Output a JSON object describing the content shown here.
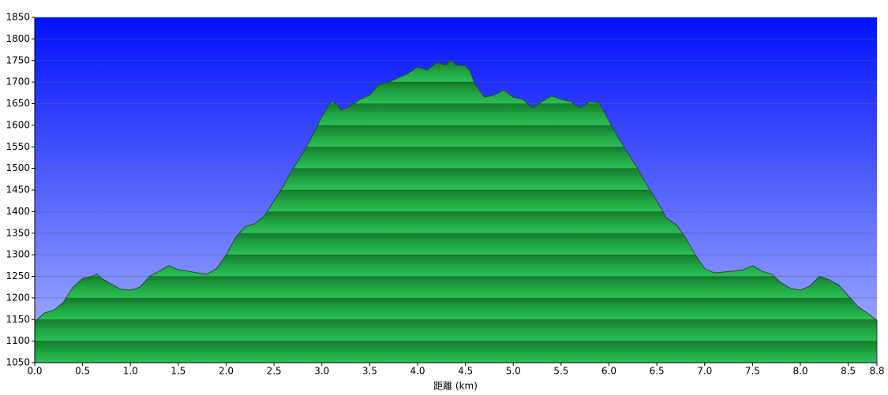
{
  "chart_data": {
    "type": "area",
    "x_label": "距離 (km)",
    "color": "#1fa542",
    "background": [
      "#0010ff",
      "#aab6ff"
    ],
    "grid": true,
    "x": [
      0.0,
      0.1,
      0.2,
      0.3,
      0.4,
      0.5,
      0.6,
      0.65,
      0.7,
      0.8,
      0.9,
      1.0,
      1.1,
      1.2,
      1.3,
      1.4,
      1.5,
      1.6,
      1.7,
      1.8,
      1.9,
      2.0,
      2.1,
      2.2,
      2.3,
      2.4,
      2.5,
      2.6,
      2.7,
      2.8,
      2.9,
      3.0,
      3.1,
      3.15,
      3.2,
      3.3,
      3.4,
      3.5,
      3.6,
      3.7,
      3.8,
      3.9,
      4.0,
      4.1,
      4.2,
      4.3,
      4.35,
      4.4,
      4.5,
      4.55,
      4.6,
      4.7,
      4.8,
      4.9,
      5.0,
      5.1,
      5.2,
      5.3,
      5.4,
      5.5,
      5.6,
      5.7,
      5.8,
      5.9,
      6.0,
      6.1,
      6.2,
      6.3,
      6.4,
      6.5,
      6.6,
      6.7,
      6.8,
      6.9,
      7.0,
      7.1,
      7.2,
      7.3,
      7.4,
      7.5,
      7.6,
      7.7,
      7.8,
      7.9,
      8.0,
      8.1,
      8.2,
      8.3,
      8.4,
      8.5,
      8.6,
      8.7,
      8.8
    ],
    "values": [
      1145,
      1165,
      1172,
      1190,
      1225,
      1245,
      1250,
      1255,
      1245,
      1232,
      1220,
      1218,
      1225,
      1250,
      1262,
      1275,
      1265,
      1262,
      1258,
      1255,
      1268,
      1300,
      1340,
      1365,
      1372,
      1390,
      1425,
      1460,
      1500,
      1535,
      1575,
      1620,
      1655,
      1650,
      1635,
      1645,
      1660,
      1670,
      1695,
      1700,
      1710,
      1720,
      1735,
      1728,
      1745,
      1740,
      1752,
      1740,
      1738,
      1725,
      1695,
      1665,
      1670,
      1682,
      1665,
      1660,
      1640,
      1655,
      1668,
      1660,
      1655,
      1640,
      1655,
      1652,
      1610,
      1570,
      1535,
      1500,
      1460,
      1425,
      1385,
      1370,
      1340,
      1300,
      1268,
      1258,
      1260,
      1262,
      1265,
      1275,
      1262,
      1255,
      1235,
      1222,
      1218,
      1228,
      1250,
      1242,
      1230,
      1205,
      1180,
      1165,
      1148
    ],
    "xlim": [
      0,
      8.8
    ],
    "ylim": [
      1050,
      1850
    ],
    "xticks": [
      {
        "value": 0,
        "label": "0.0"
      },
      0.5,
      {
        "value": 1,
        "label": "1.0"
      },
      1.5,
      {
        "value": 2,
        "label": "2.0"
      },
      2.5,
      {
        "value": 3,
        "label": "3.0"
      },
      3.5,
      {
        "value": 4,
        "label": "4.0"
      },
      4.5,
      {
        "value": 5,
        "label": "5.0"
      },
      5.5,
      {
        "value": 6,
        "label": "6.0"
      },
      6.5,
      {
        "value": 7,
        "label": "7.0"
      },
      7.5,
      {
        "value": 8,
        "label": "8.0"
      },
      8.5,
      8.8
    ],
    "yticks": [
      1050,
      1100,
      1150,
      1200,
      1250,
      1300,
      1350,
      1400,
      1450,
      1500,
      1550,
      1600,
      1650,
      1700,
      1750,
      1800,
      1850
    ]
  }
}
